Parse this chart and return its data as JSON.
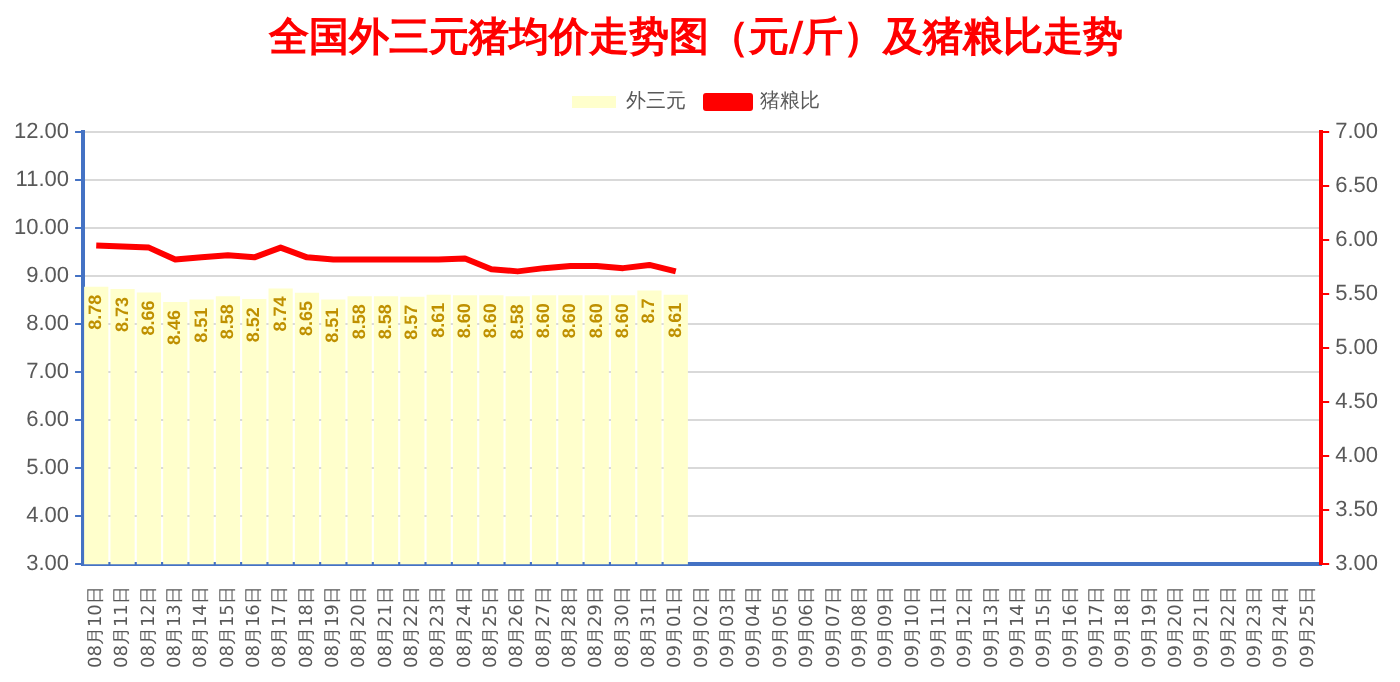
{
  "chart_data": {
    "type": "bar",
    "title": "全国外三元猪均价走势图（元/斤）及猪粮比走势",
    "categories": [
      "08月10日",
      "08月11日",
      "08月12日",
      "08月13日",
      "08月14日",
      "08月15日",
      "08月16日",
      "08月17日",
      "08月18日",
      "08月19日",
      "08月20日",
      "08月21日",
      "08月22日",
      "08月23日",
      "08月24日",
      "08月25日",
      "08月26日",
      "08月27日",
      "08月28日",
      "08月29日",
      "08月30日",
      "08月31日",
      "09月01日",
      "09月02日",
      "09月03日",
      "09月04日",
      "09月05日",
      "09月06日",
      "09月07日",
      "09月08日",
      "09月09日",
      "09月10日",
      "09月11日",
      "09月12日",
      "09月13日",
      "09月14日",
      "09月15日",
      "09月16日",
      "09月17日",
      "09月18日",
      "09月19日",
      "09月20日",
      "09月21日",
      "09月22日",
      "09月23日",
      "09月24日",
      "09月25日"
    ],
    "series": [
      {
        "name": "外三元",
        "color": "#ffffcc",
        "values": [
          8.78,
          8.73,
          8.66,
          8.46,
          8.51,
          8.58,
          8.52,
          8.74,
          8.65,
          8.51,
          8.58,
          8.58,
          8.57,
          8.61,
          8.6,
          8.6,
          8.58,
          8.6,
          8.6,
          8.6,
          8.6,
          8.7,
          8.61,
          null,
          null,
          null,
          null,
          null,
          null,
          null,
          null,
          null,
          null,
          null,
          null,
          null,
          null,
          null,
          null,
          null,
          null,
          null,
          null,
          null,
          null,
          null,
          null
        ],
        "value_labels": [
          "8.78",
          "8.73",
          "8.66",
          "8.46",
          "8.51",
          "8.58",
          "8.52",
          "8.74",
          "8.65",
          "8.51",
          "8.58",
          "8.58",
          "8.57",
          "8.61",
          "8.60",
          "8.60",
          "8.58",
          "8.60",
          "8.60",
          "8.60",
          "8.60",
          "8.7",
          "8.61",
          null,
          null,
          null,
          null,
          null,
          null,
          null,
          null,
          null,
          null,
          null,
          null,
          null,
          null,
          null,
          null,
          null,
          null,
          null,
          null,
          null,
          null,
          null,
          null
        ]
      },
      {
        "type": "line",
        "name": "猪粮比",
        "color": "#ff0000",
        "axis": "y2",
        "values": [
          5.95,
          5.94,
          5.93,
          5.82,
          5.84,
          5.86,
          5.84,
          5.93,
          5.84,
          5.82,
          5.82,
          5.82,
          5.82,
          5.82,
          5.83,
          5.73,
          5.71,
          5.74,
          5.76,
          5.76,
          5.74,
          5.77,
          5.71,
          null,
          null,
          null,
          null,
          null,
          null,
          null,
          null,
          null,
          null,
          null,
          null,
          null,
          null,
          null,
          null,
          null,
          null,
          null,
          null,
          null,
          null,
          null,
          null
        ]
      }
    ],
    "ylim": [
      3,
      12
    ],
    "yticks": [
      {
        "value": 3,
        "label": "3.00"
      },
      {
        "value": 4,
        "label": "4.00"
      },
      {
        "value": 5,
        "label": "5.00"
      },
      {
        "value": 6,
        "label": "6.00"
      },
      {
        "value": 7,
        "label": "7.00"
      },
      {
        "value": 8,
        "label": "8.00"
      },
      {
        "value": 9,
        "label": "9.00"
      },
      {
        "value": 10,
        "label": "10.00"
      },
      {
        "value": 11,
        "label": "11.00"
      },
      {
        "value": 12,
        "label": "12.00"
      }
    ],
    "y2lim": [
      3,
      7
    ],
    "y2ticks": [
      {
        "value": 3,
        "label": "3.00"
      },
      {
        "value": 3.5,
        "label": "3.50"
      },
      {
        "value": 4,
        "label": "4.00"
      },
      {
        "value": 4.5,
        "label": "4.50"
      },
      {
        "value": 5,
        "label": "5.00"
      },
      {
        "value": 5.5,
        "label": "5.50"
      },
      {
        "value": 6,
        "label": "6.00"
      },
      {
        "value": 6.5,
        "label": "6.50"
      },
      {
        "value": 7,
        "label": "7.00"
      }
    ],
    "grid": "y",
    "legend": "top"
  }
}
